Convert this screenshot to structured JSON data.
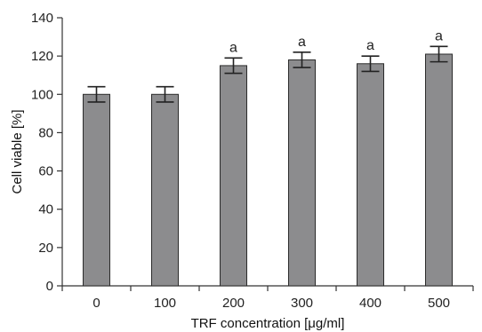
{
  "chart_data": {
    "type": "bar",
    "categories": [
      "0",
      "100",
      "200",
      "300",
      "400",
      "500"
    ],
    "values": [
      100,
      100,
      115,
      118,
      116,
      121
    ],
    "errors": [
      4,
      4,
      4,
      4,
      4,
      4
    ],
    "annotations": [
      "",
      "",
      "a",
      "a",
      "a",
      "a"
    ],
    "xlabel": "TRF concentration [μg/ml]",
    "ylabel": "Cell viable [%]",
    "ylim": [
      0,
      140
    ],
    "yticks": [
      0,
      20,
      40,
      60,
      80,
      100,
      120,
      140
    ],
    "grid": false,
    "bar_color": "#8c8c8e",
    "bar_edge_color": "#2b2b2b"
  }
}
